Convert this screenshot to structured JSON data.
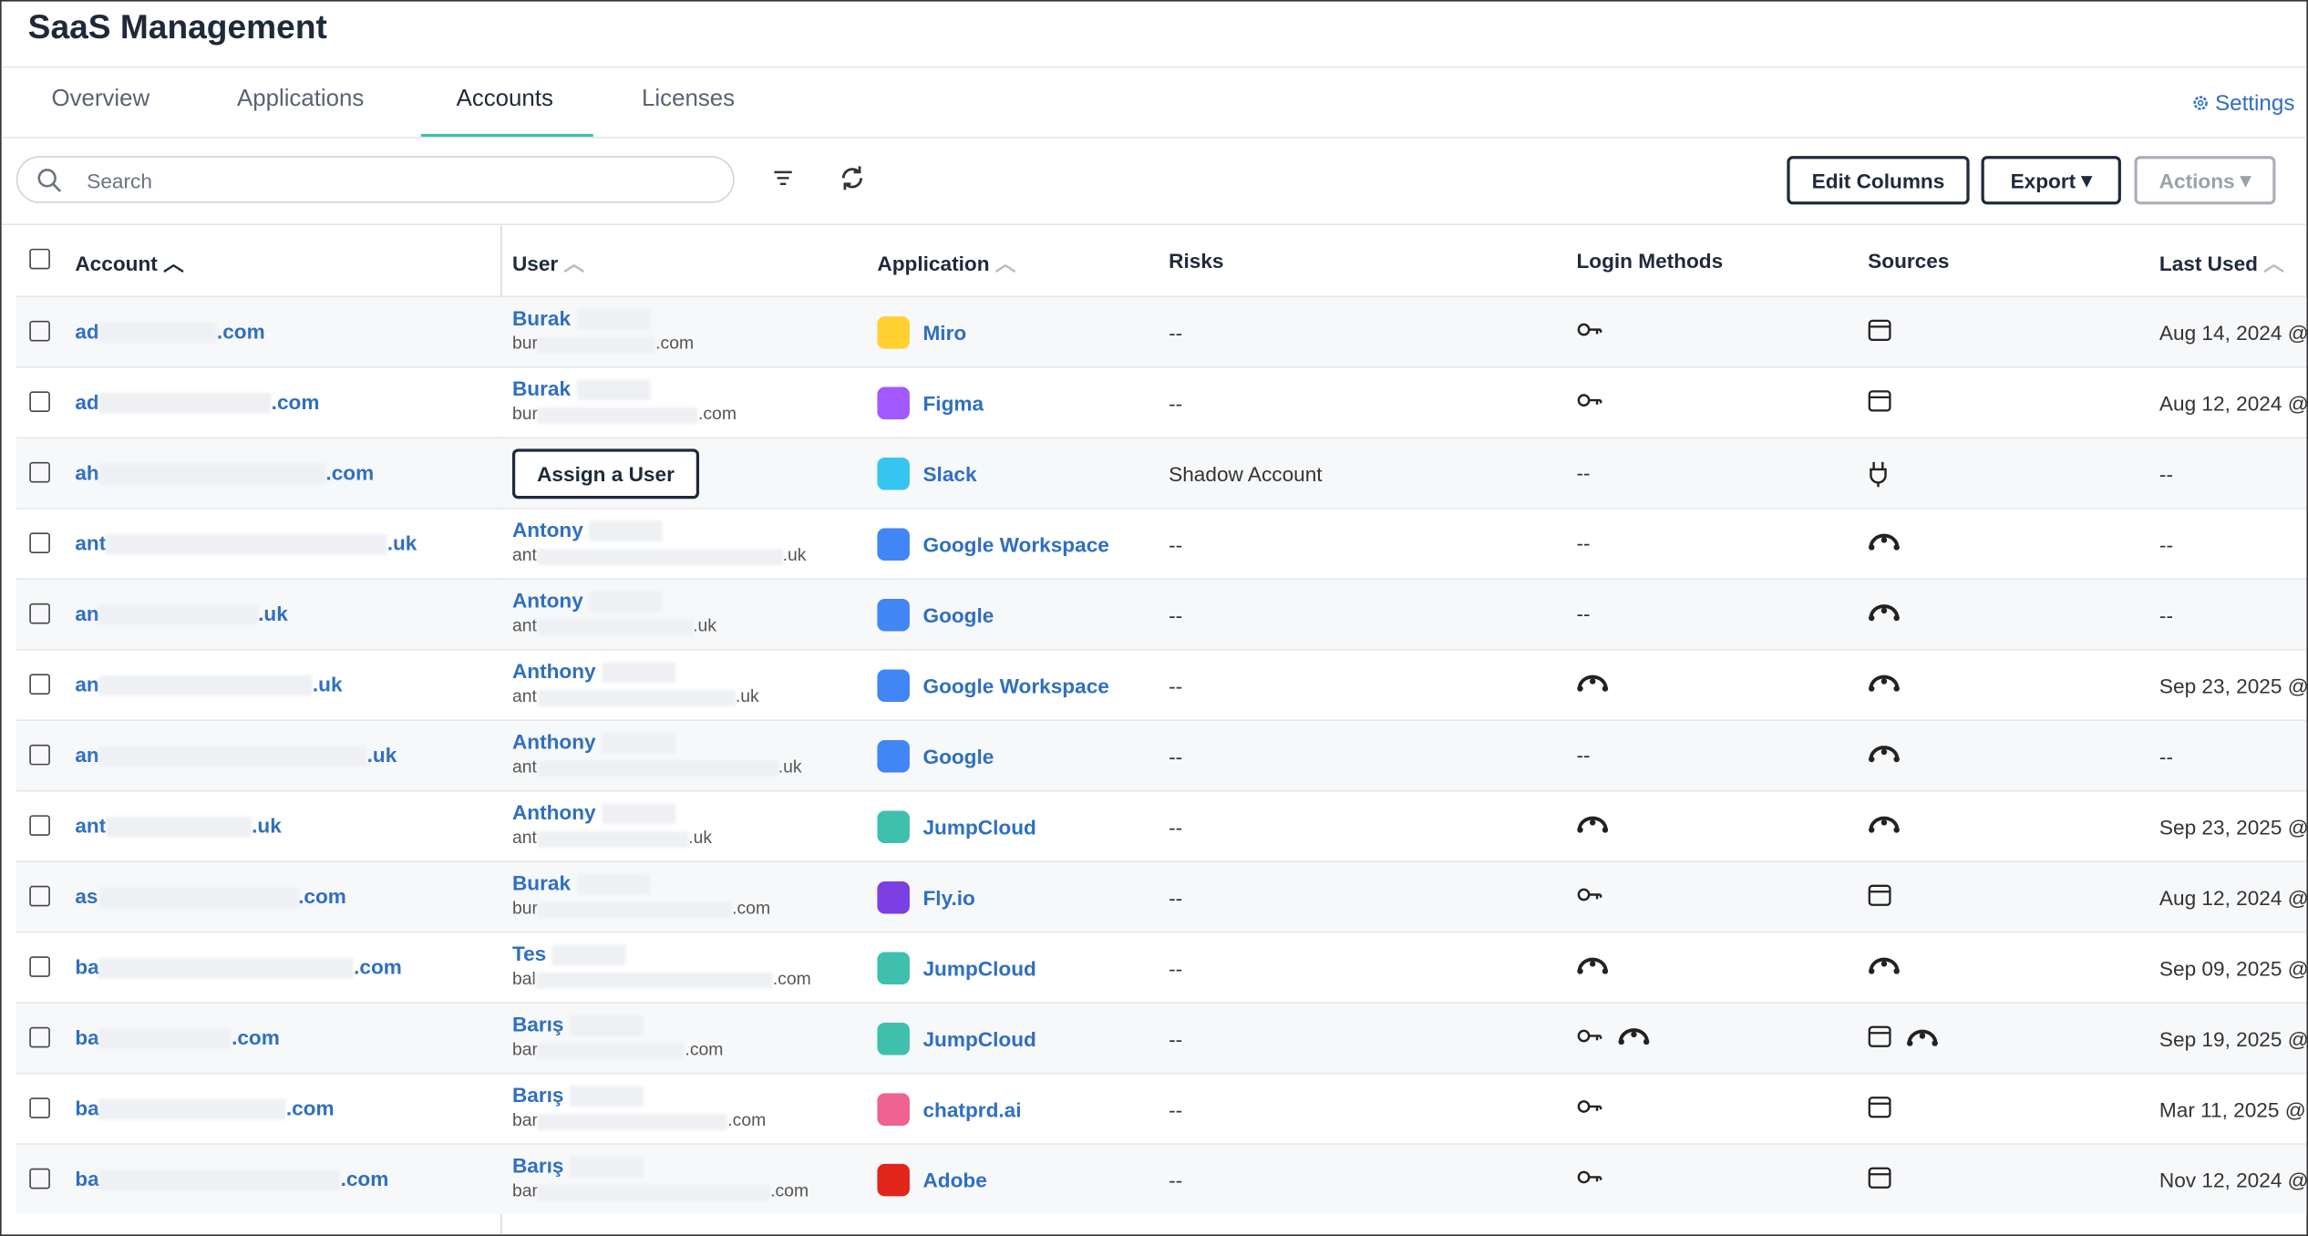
{
  "header": {
    "title": "SaaS Management"
  },
  "tabs": [
    "Overview",
    "Applications",
    "Accounts",
    "Licenses"
  ],
  "active_tab": 2,
  "settings": "Settings",
  "toolbar": {
    "search_placeholder": "Search",
    "buttons": [
      "Edit Columns",
      "Export",
      "Actions"
    ]
  },
  "table": {
    "columns": [
      "Account",
      "User",
      "Application",
      "Risks",
      "Login Methods",
      "Sources",
      "Last Used"
    ],
    "rows": [
      {
        "account": {
          "prefix": "ad",
          "suffix": ".com"
        },
        "user": {
          "name": "Burak",
          "email_prefix": "bur",
          "email_suffix": ".com"
        },
        "application": "Miro",
        "icon_color": "#ffd02f",
        "risks": "--",
        "login_methods": [
          "key"
        ],
        "sources": [
          "browser"
        ],
        "last_used": "Aug 14, 2024 @"
      },
      {
        "account": {
          "prefix": "ad",
          "suffix": ".com"
        },
        "user": {
          "name": "Burak",
          "email_prefix": "bur",
          "email_suffix": ".com"
        },
        "application": "Figma",
        "icon_color": "#a259ff",
        "risks": "--",
        "login_methods": [
          "key"
        ],
        "sources": [
          "browser"
        ],
        "last_used": "Aug 12, 2024 @"
      },
      {
        "account": {
          "prefix": "ah",
          "suffix": ".com"
        },
        "user": {
          "button": "Assign a User"
        },
        "application": "Slack",
        "icon_color": "#36c5f0",
        "risks": "Shadow Account",
        "login_methods": "--",
        "sources": [
          "plug"
        ],
        "last_used": "--"
      },
      {
        "account": {
          "prefix": "ant",
          "suffix": ".uk"
        },
        "user": {
          "name": "Antony",
          "email_prefix": "ant",
          "email_suffix": ".uk"
        },
        "application": "Google Workspace",
        "icon_color": "#4285f4",
        "risks": "--",
        "login_methods": "--",
        "sources": [
          "jumpcloud"
        ],
        "last_used": "--"
      },
      {
        "account": {
          "prefix": "an",
          "suffix": ".uk"
        },
        "user": {
          "name": "Antony",
          "email_prefix": "ant",
          "email_suffix": ".uk"
        },
        "application": "Google",
        "icon_color": "#4285f4",
        "risks": "--",
        "login_methods": "--",
        "sources": [
          "jumpcloud"
        ],
        "last_used": "--"
      },
      {
        "account": {
          "prefix": "an",
          "suffix": ".uk"
        },
        "user": {
          "name": "Anthony",
          "email_prefix": "ant",
          "email_suffix": ".uk"
        },
        "application": "Google Workspace",
        "icon_color": "#4285f4",
        "risks": "--",
        "login_methods": [
          "jumpcloud"
        ],
        "sources": [
          "jumpcloud"
        ],
        "last_used": "Sep 23, 2025 @"
      },
      {
        "account": {
          "prefix": "an",
          "suffix": ".uk"
        },
        "user": {
          "name": "Anthony",
          "email_prefix": "ant",
          "email_suffix": ".uk"
        },
        "application": "Google",
        "icon_color": "#4285f4",
        "risks": "--",
        "login_methods": "--",
        "sources": [
          "jumpcloud"
        ],
        "last_used": "--"
      },
      {
        "account": {
          "prefix": "ant",
          "suffix": ".uk"
        },
        "user": {
          "name": "Anthony",
          "email_prefix": "ant",
          "email_suffix": ".uk"
        },
        "application": "JumpCloud",
        "icon_color": "#3fbfad",
        "risks": "--",
        "login_methods": [
          "jumpcloud"
        ],
        "sources": [
          "jumpcloud"
        ],
        "last_used": "Sep 23, 2025 @"
      },
      {
        "account": {
          "prefix": "as",
          "suffix": ".com"
        },
        "user": {
          "name": "Burak",
          "email_prefix": "bur",
          "email_suffix": ".com"
        },
        "application": "Fly.io",
        "icon_color": "#7b3fe4",
        "risks": "--",
        "login_methods": [
          "key"
        ],
        "sources": [
          "browser"
        ],
        "last_used": "Aug 12, 2024 @"
      },
      {
        "account": {
          "prefix": "ba",
          "suffix": ".com"
        },
        "user": {
          "name": "Tes",
          "email_prefix": "bal",
          "email_suffix": ".com"
        },
        "application": "JumpCloud",
        "icon_color": "#3fbfad",
        "risks": "--",
        "login_methods": [
          "jumpcloud"
        ],
        "sources": [
          "jumpcloud"
        ],
        "last_used": "Sep 09, 2025 @"
      },
      {
        "account": {
          "prefix": "ba",
          "suffix": ".com"
        },
        "user": {
          "name": "Barış",
          "email_prefix": "bar",
          "email_suffix": ".com"
        },
        "application": "JumpCloud",
        "icon_color": "#3fbfad",
        "risks": "--",
        "login_methods": [
          "key",
          "jumpcloud"
        ],
        "sources": [
          "browser",
          "jumpcloud"
        ],
        "last_used": "Sep 19, 2025 @"
      },
      {
        "account": {
          "prefix": "ba",
          "suffix": ".com"
        },
        "user": {
          "name": "Barış",
          "email_prefix": "bar",
          "email_suffix": ".com"
        },
        "application": "chatprd.ai",
        "icon_color": "#f06292",
        "risks": "--",
        "login_methods": [
          "key"
        ],
        "sources": [
          "browser"
        ],
        "last_used": "Mar 11, 2025 @"
      },
      {
        "account": {
          "prefix": "ba",
          "suffix": ".com"
        },
        "user": {
          "name": "Barış",
          "email_prefix": "bar",
          "email_suffix": ".com"
        },
        "application": "Adobe",
        "icon_color": "#e1251b",
        "risks": "--",
        "login_methods": [
          "key"
        ],
        "sources": [
          "browser"
        ],
        "last_used": "Nov 12, 2024 @"
      }
    ]
  }
}
